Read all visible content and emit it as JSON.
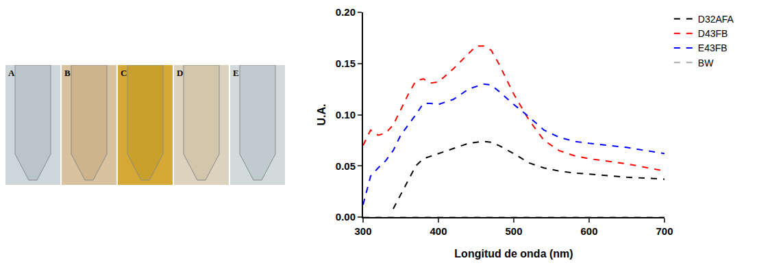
{
  "photo_labels": [
    "A",
    "B",
    "C",
    "D",
    "E"
  ],
  "chart_data": {
    "type": "line",
    "x_label": "Longitud de onda (nm)",
    "y_label": "U.A.",
    "xlim": [
      300,
      700
    ],
    "xticks": [
      300,
      400,
      500,
      600,
      700
    ],
    "ylim": [
      0,
      0.2
    ],
    "yticks": [
      {
        "value": 0,
        "label": "0.00"
      },
      {
        "value": 0.05,
        "label": "0.05"
      },
      {
        "value": 0.1,
        "label": "0.10"
      },
      {
        "value": 0.15,
        "label": "0.15"
      },
      {
        "value": 0.2,
        "label": "0.20"
      }
    ],
    "grid": false,
    "legend": "outside right",
    "series": [
      {
        "name": "D32AFA",
        "color": "#000000",
        "line_style": "dash",
        "x": [
          340,
          350,
          360,
          370,
          380,
          400,
          420,
          440,
          460,
          470,
          480,
          500,
          520,
          540,
          560,
          580,
          600,
          650,
          700
        ],
        "values": [
          0.008,
          0.022,
          0.035,
          0.05,
          0.057,
          0.062,
          0.067,
          0.072,
          0.074,
          0.073,
          0.07,
          0.062,
          0.053,
          0.048,
          0.045,
          0.043,
          0.042,
          0.039,
          0.037
        ]
      },
      {
        "name": "D43FB",
        "color": "#ff0000",
        "line_style": "dash",
        "x": [
          300,
          310,
          320,
          330,
          340,
          350,
          360,
          370,
          380,
          390,
          400,
          420,
          440,
          450,
          460,
          470,
          480,
          500,
          520,
          540,
          560,
          580,
          600,
          650,
          700
        ],
        "values": [
          0.07,
          0.085,
          0.08,
          0.082,
          0.09,
          0.105,
          0.12,
          0.133,
          0.135,
          0.131,
          0.132,
          0.145,
          0.16,
          0.167,
          0.167,
          0.163,
          0.15,
          0.12,
          0.095,
          0.075,
          0.065,
          0.06,
          0.057,
          0.052,
          0.045
        ]
      },
      {
        "name": "E43FB",
        "color": "#0000ff",
        "line_style": "dash",
        "x": [
          300,
          310,
          320,
          330,
          340,
          350,
          360,
          370,
          380,
          390,
          400,
          420,
          440,
          460,
          470,
          480,
          500,
          520,
          540,
          560,
          580,
          600,
          650,
          700
        ],
        "values": [
          0.012,
          0.04,
          0.048,
          0.055,
          0.065,
          0.08,
          0.09,
          0.1,
          0.111,
          0.111,
          0.11,
          0.115,
          0.125,
          0.13,
          0.129,
          0.123,
          0.11,
          0.098,
          0.085,
          0.078,
          0.074,
          0.072,
          0.068,
          0.062
        ]
      },
      {
        "name": "BW",
        "color": "#aaaaaa",
        "line_style": "dash",
        "x": [
          300,
          400,
          500,
          600,
          700
        ],
        "values": [
          0,
          0,
          0,
          0,
          0
        ]
      }
    ]
  }
}
